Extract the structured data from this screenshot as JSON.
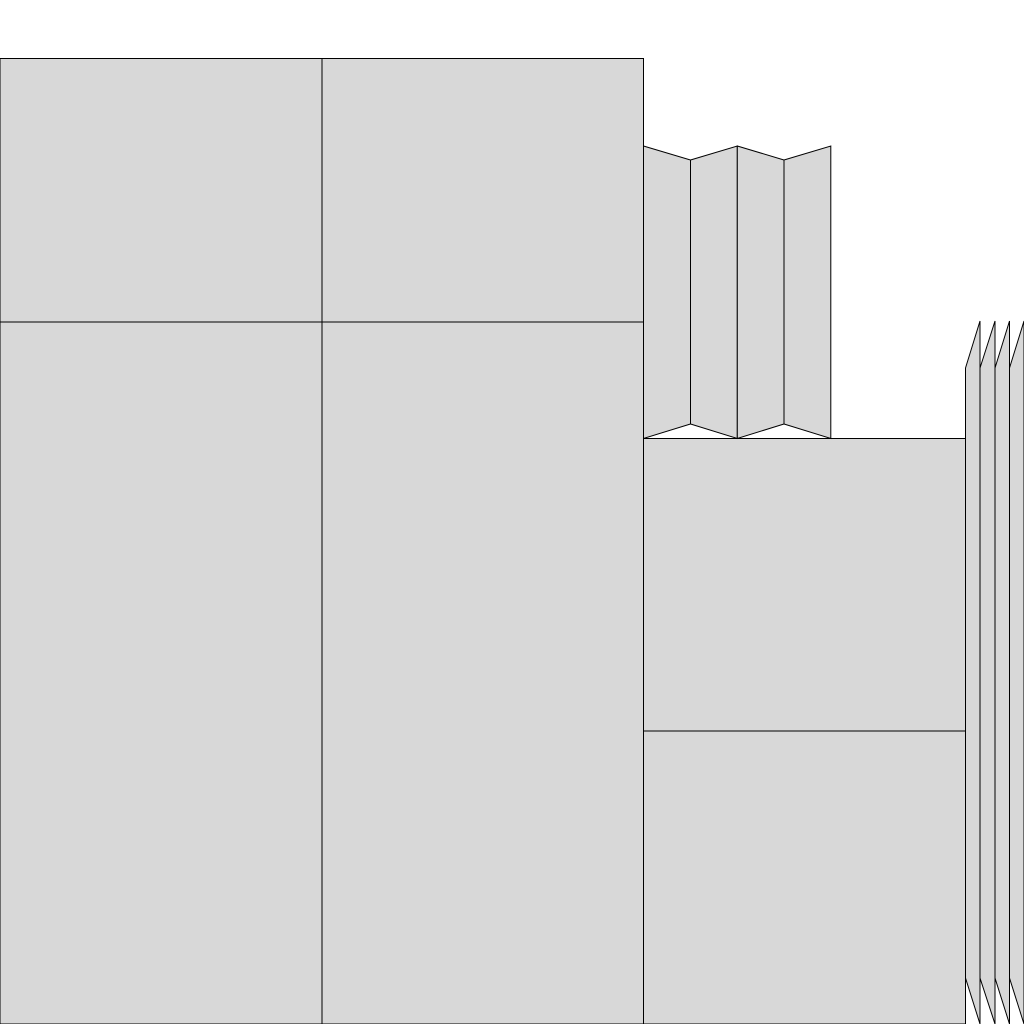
{
  "colors": {
    "background": "#ffffff",
    "panel_fill": "#d8d8d8",
    "outline": "#000000"
  },
  "diagram": {
    "top_fold_strips": 4,
    "right_fold_strips": 4
  }
}
